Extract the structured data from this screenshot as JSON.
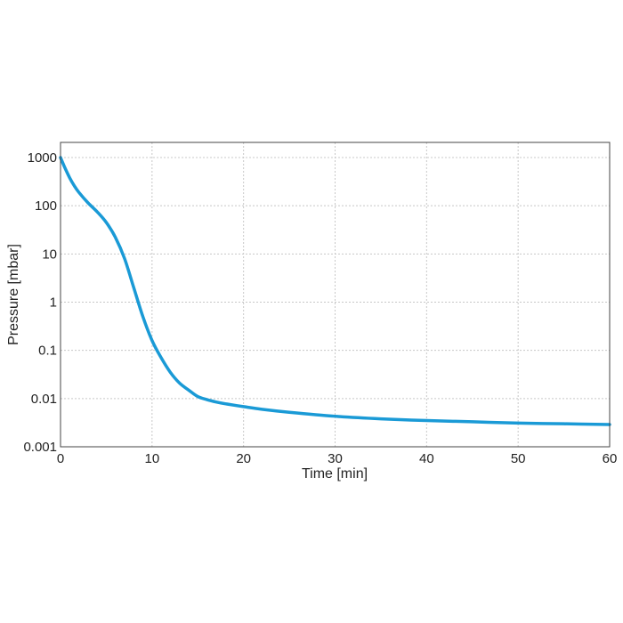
{
  "chart_data": {
    "type": "line",
    "xlabel": "Time [min]",
    "ylabel": "Pressure [mbar]",
    "xlim": [
      0,
      60
    ],
    "ylim": [
      0.001,
      2000
    ],
    "yscale": "log",
    "grid": true,
    "x_ticks": [
      0,
      10,
      20,
      30,
      40,
      50,
      60
    ],
    "x_tick_labels": [
      "0",
      "10",
      "20",
      "30",
      "40",
      "50",
      "60"
    ],
    "y_ticks": [
      0.001,
      0.01,
      0.1,
      1,
      10,
      100,
      1000
    ],
    "y_tick_labels": [
      "0.001",
      "0.01",
      "0.1",
      "1",
      "10",
      "100",
      "1000"
    ],
    "series": [
      {
        "color": "#1a9ad6",
        "x": [
          0,
          0.5,
          1,
          1.5,
          2,
          3,
          4,
          5,
          6,
          7,
          8,
          9,
          10,
          11,
          12,
          13,
          14,
          15,
          16,
          17,
          18,
          20,
          22,
          25,
          30,
          35,
          40,
          45,
          50,
          55,
          60
        ],
        "y": [
          1000,
          600,
          380,
          260,
          190,
          115,
          75,
          45,
          22,
          8,
          2,
          0.5,
          0.16,
          0.07,
          0.035,
          0.021,
          0.015,
          0.011,
          0.0095,
          0.0085,
          0.0078,
          0.0068,
          0.006,
          0.0052,
          0.0043,
          0.0038,
          0.0035,
          0.0033,
          0.0031,
          0.003,
          0.0029
        ]
      }
    ]
  }
}
